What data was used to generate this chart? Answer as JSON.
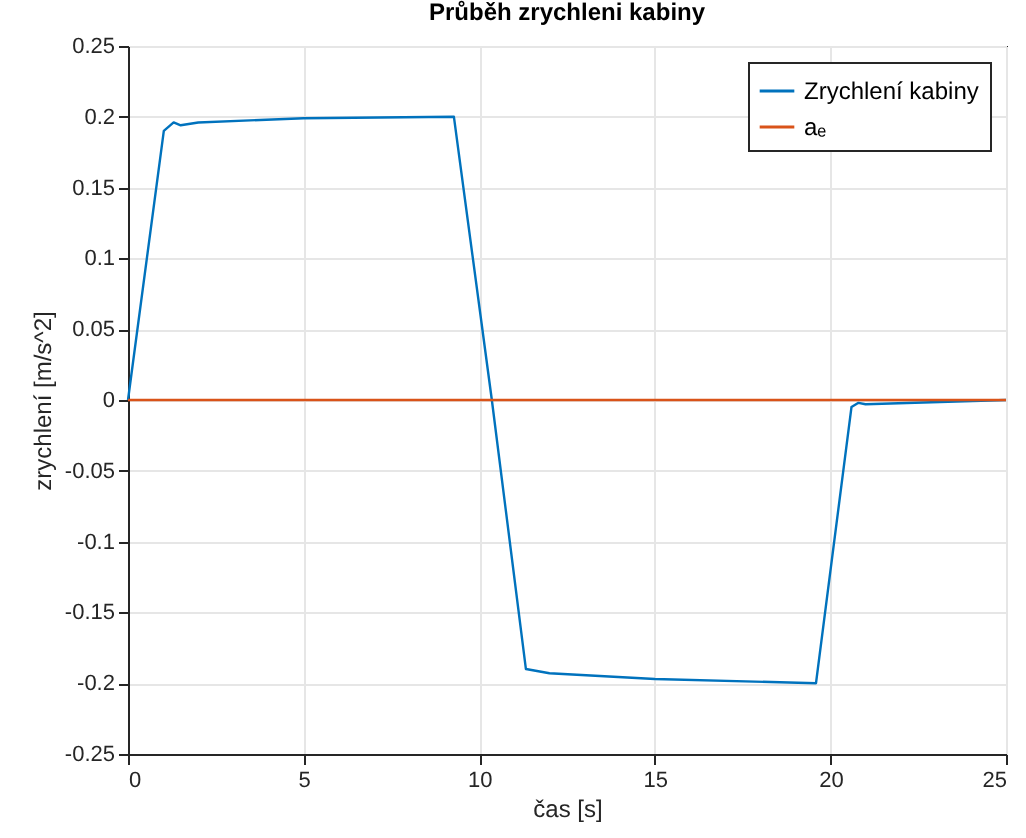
{
  "chart_data": {
    "type": "line",
    "title": "Průběh zrychleni kabiny",
    "xlabel": "čas [s]",
    "ylabel": "zrychlení [m/s^2]",
    "series": [
      {
        "name": "Zrychlení kabiny",
        "color": "#0072bd",
        "x": [
          0,
          1.02,
          1.3,
          1.5,
          2,
          5,
          9.28,
          10.36,
          11.33,
          12,
          15,
          19.59,
          20.6,
          20.8,
          21,
          25
        ],
        "values": [
          0,
          0.19,
          0.196,
          0.194,
          0.196,
          0.199,
          0.2,
          0,
          -0.19,
          -0.193,
          -0.197,
          -0.2,
          -0.005,
          -0.002,
          -0.003,
          0
        ]
      },
      {
        "name": "aₑ",
        "color": "#d95319",
        "x": [
          0,
          25
        ],
        "values": [
          0,
          0
        ]
      }
    ],
    "xlim": [
      0,
      25
    ],
    "xticks": [
      0,
      5,
      10,
      15,
      20,
      25
    ],
    "ylim": [
      -0.25,
      0.25
    ],
    "yticks": [
      -0.25,
      -0.2,
      -0.15,
      -0.1,
      -0.05,
      0,
      0.05,
      0.1,
      0.15,
      0.2,
      0.25
    ],
    "grid": true,
    "legend": "top right",
    "line_style": "solid",
    "marker": "none"
  }
}
